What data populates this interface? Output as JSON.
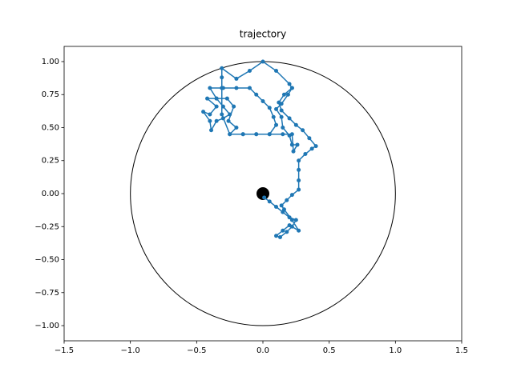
{
  "chart_data": {
    "type": "scatter-line",
    "title": "trajectory",
    "x": [
      0.01,
      0.05,
      0.1,
      0.15,
      0.2,
      0.25,
      0.22,
      0.18,
      0.13,
      0.1,
      0.15,
      0.2,
      0.27,
      0.22,
      0.16,
      0.14,
      0.18,
      0.22,
      0.27,
      0.27,
      0.27,
      0.27,
      0.32,
      0.37,
      0.4,
      0.35,
      0.3,
      0.25,
      0.2,
      0.14,
      0.12,
      0.16,
      0.22,
      0.19,
      0.14,
      0.1,
      0.14,
      0.15,
      0.2,
      0.22,
      0.26,
      0.23,
      0.22,
      0.15,
      0.05,
      -0.05,
      -0.15,
      -0.25,
      -0.2,
      -0.26,
      -0.22,
      -0.27,
      -0.35,
      -0.42,
      -0.35,
      -0.4,
      -0.45,
      -0.4,
      -0.39,
      -0.35,
      -0.3,
      -0.25,
      -0.3,
      -0.35,
      -0.4,
      -0.3,
      -0.2,
      -0.1,
      -0.05,
      0.0,
      0.05,
      0.08,
      0.1,
      0.05,
      -0.05,
      -0.15,
      -0.25,
      -0.31,
      -0.31,
      -0.31,
      -0.31,
      -0.2,
      -0.1,
      0.0,
      0.1,
      0.2,
      0.22
    ],
    "y": [
      -0.03,
      -0.06,
      -0.1,
      -0.14,
      -0.18,
      -0.2,
      -0.25,
      -0.29,
      -0.33,
      -0.32,
      -0.28,
      -0.24,
      -0.28,
      -0.2,
      -0.12,
      -0.09,
      -0.05,
      -0.01,
      0.03,
      0.1,
      0.18,
      0.25,
      0.3,
      0.34,
      0.36,
      0.42,
      0.48,
      0.52,
      0.57,
      0.63,
      0.69,
      0.75,
      0.8,
      0.75,
      0.68,
      0.64,
      0.58,
      0.5,
      0.44,
      0.37,
      0.37,
      0.32,
      0.45,
      0.45,
      0.45,
      0.45,
      0.45,
      0.45,
      0.5,
      0.55,
      0.66,
      0.72,
      0.72,
      0.72,
      0.66,
      0.6,
      0.62,
      0.55,
      0.48,
      0.55,
      0.57,
      0.6,
      0.66,
      0.72,
      0.8,
      0.8,
      0.8,
      0.8,
      0.75,
      0.7,
      0.65,
      0.58,
      0.52,
      0.45,
      0.45,
      0.45,
      0.45,
      0.6,
      0.8,
      0.88,
      0.95,
      0.87,
      0.93,
      1.0,
      0.93,
      0.83,
      0.8
    ],
    "color": "#1f77b4",
    "circle_radius": 1,
    "origin_point": {
      "x": 0,
      "y": 0,
      "color": "#000000"
    },
    "xlim": [
      -1.5,
      1.5
    ],
    "ylim": [
      -1.115,
      1.115
    ],
    "xticks": [
      {
        "value": -1.5,
        "label": "−1.5"
      },
      {
        "value": -1.0,
        "label": "−1.0"
      },
      {
        "value": -0.5,
        "label": "−0.5"
      },
      {
        "value": 0.0,
        "label": "0.0"
      },
      {
        "value": 0.5,
        "label": "0.5"
      },
      {
        "value": 1.0,
        "label": "1.0"
      },
      {
        "value": 1.5,
        "label": "1.5"
      }
    ],
    "yticks": [
      {
        "value": -1.0,
        "label": "−1.00"
      },
      {
        "value": -0.75,
        "label": "−0.75"
      },
      {
        "value": -0.5,
        "label": "−0.50"
      },
      {
        "value": -0.25,
        "label": "−0.25"
      },
      {
        "value": 0.0,
        "label": "0.00"
      },
      {
        "value": 0.25,
        "label": "0.25"
      },
      {
        "value": 0.5,
        "label": "0.50"
      },
      {
        "value": 0.75,
        "label": "0.75"
      },
      {
        "value": 1.0,
        "label": "1.00"
      }
    ]
  }
}
